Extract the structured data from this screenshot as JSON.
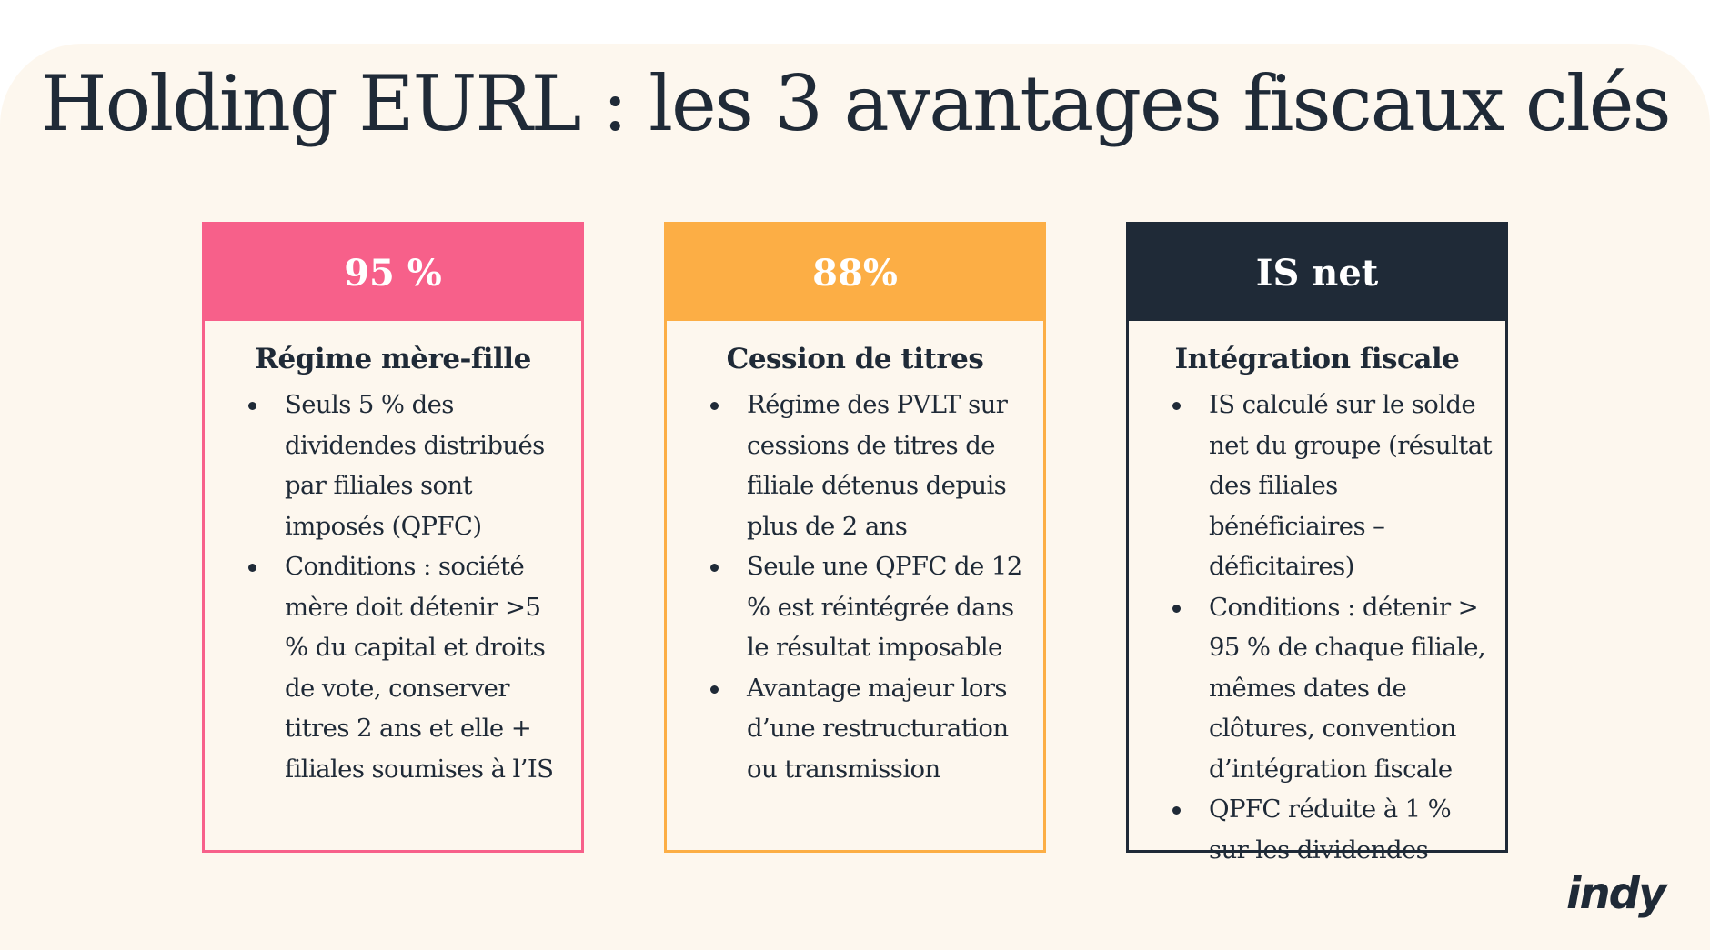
{
  "title": "Holding EURL : les 3 avantages fiscaux clés",
  "colors": {
    "background": "#fdf7ee",
    "pink": "#f7608a",
    "orange": "#fcae45",
    "dark": "#1f2a37"
  },
  "cards": [
    {
      "header": "95 %",
      "title": "Régime mère-fille",
      "bullets": [
        "Seuls 5 % des dividendes distribués par filiales sont imposés (QPFC)",
        "Conditions : société mère doit détenir >5 % du capital et droits de vote, conserver titres 2 ans et elle + filiales soumises à l’IS"
      ]
    },
    {
      "header": "88%",
      "title": "Cession de titres",
      "bullets": [
        "Régime des PVLT sur cessions de titres de filiale détenus depuis plus de 2 ans",
        "Seule une QPFC de 12 % est réintégrée dans le résultat imposable",
        "Avantage majeur lors d’une restructuration ou transmission"
      ]
    },
    {
      "header": "IS net",
      "title": "Intégration fiscale",
      "bullets": [
        "IS calculé sur le solde net du groupe (résultat des filiales bénéficiaires – déficitaires)",
        "Conditions : détenir > 95 % de chaque filiale, mêmes dates de clôtures, convention d’intégration fiscale",
        "QPFC réduite à 1 % sur les dividendes"
      ]
    }
  ],
  "logo": "indy"
}
